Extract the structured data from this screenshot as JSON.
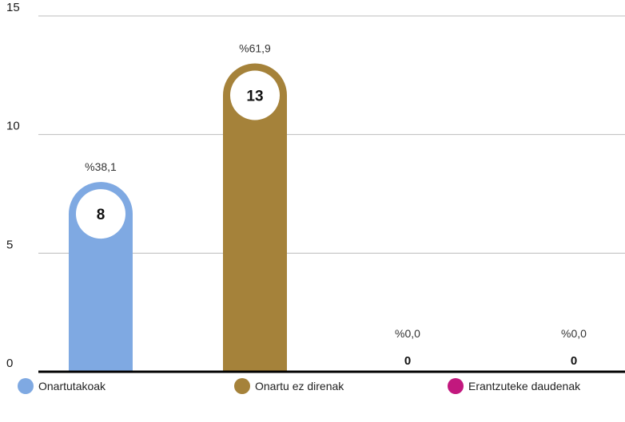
{
  "chart_data": {
    "type": "bar",
    "categories": [
      "Onartutakoak",
      "Onartu ez direnak",
      "Erantzuteke daudenak",
      ""
    ],
    "values": [
      8,
      13,
      0,
      0
    ],
    "percent_labels": [
      "%38,1",
      "%61,9",
      "%0,0",
      "%0,0"
    ],
    "value_labels": [
      "8",
      "13",
      "0",
      "0"
    ],
    "colors": [
      "#7fa9e2",
      "#a5823a",
      "#c2187e",
      "#c2187e"
    ],
    "ylim": [
      0,
      15
    ],
    "yticks": [
      "0",
      "5",
      "10",
      "15"
    ],
    "grid": true,
    "legend_position": "bottom",
    "title": "",
    "xlabel": "",
    "ylabel": ""
  },
  "legend": [
    {
      "label": "Onartutakoak",
      "color": "#7fa9e2"
    },
    {
      "label": "Onartu ez direnak",
      "color": "#a5823a"
    },
    {
      "label": "Erantzuteke daudenak",
      "color": "#c2187e"
    }
  ]
}
